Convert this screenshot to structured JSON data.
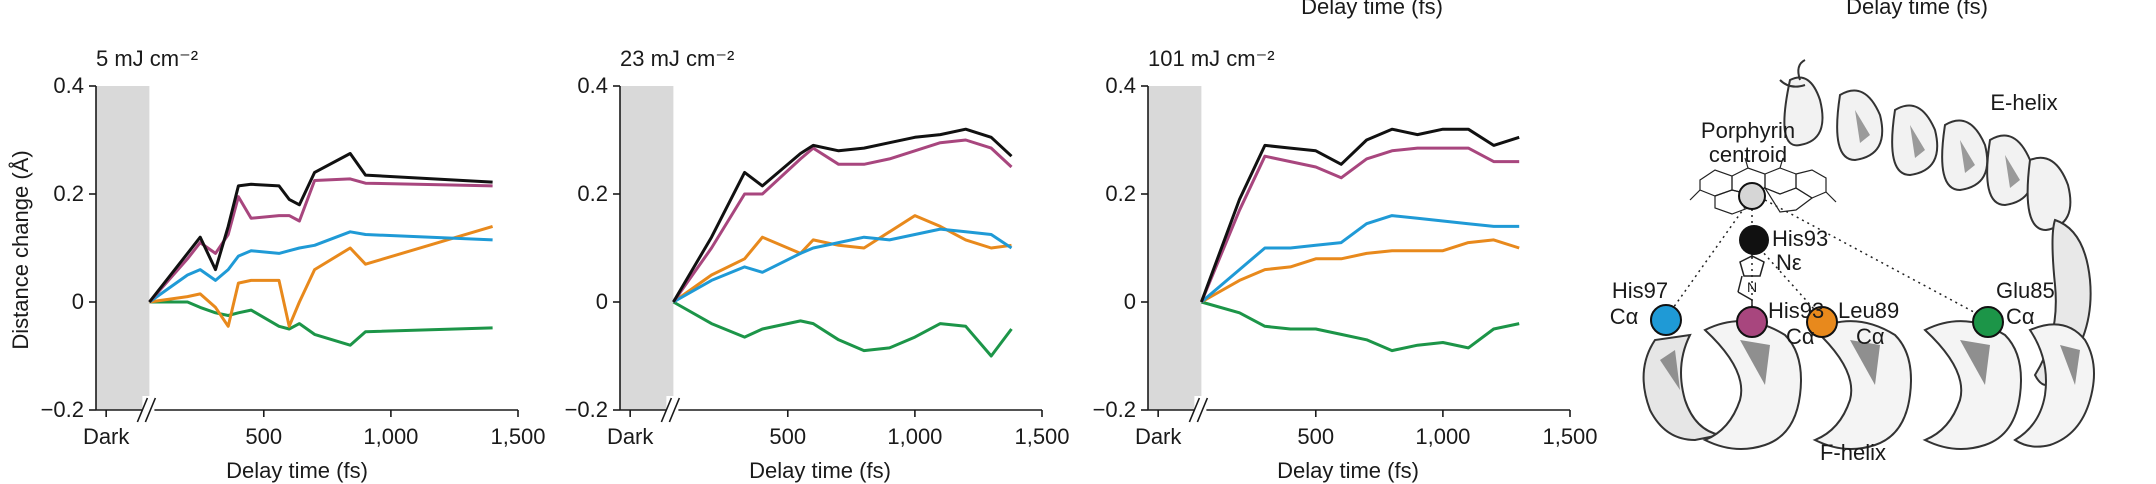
{
  "top_labels": {
    "clipped_xlabel_1": "Delay time (fs)",
    "clipped_xlabel_2": "Delay time (fs)"
  },
  "series_colors": {
    "black": "#111111",
    "magenta": "#a8467e",
    "blue": "#1f9ad6",
    "orange": "#e8891c",
    "green": "#1c9548"
  },
  "chart_data": [
    {
      "type": "line",
      "title": "5 mJ cm⁻²",
      "xlabel": "Delay time (fs)",
      "ylabel": "Distance change (Å)",
      "ylim": [
        -0.2,
        0.4
      ],
      "xlim": [
        -160,
        1500
      ],
      "dark_region": [
        -160,
        50
      ],
      "yticks": [
        -0.2,
        0,
        0.2,
        0.4
      ],
      "ytick_labels": [
        "−0.2",
        "0",
        "0.2",
        "0.4"
      ],
      "xticks": [
        -120,
        500,
        1000,
        1500
      ],
      "xtick_labels": [
        "Dark",
        "500",
        "1,000",
        "1,500"
      ],
      "series": [
        {
          "name": "black",
          "color": "#111111",
          "x": [
            50,
            200,
            250,
            310,
            360,
            400,
            450,
            560,
            600,
            640,
            700,
            840,
            900,
            1400
          ],
          "y": [
            0,
            0.09,
            0.12,
            0.06,
            0.14,
            0.215,
            0.218,
            0.215,
            0.19,
            0.18,
            0.24,
            0.275,
            0.235,
            0.222
          ]
        },
        {
          "name": "magenta",
          "color": "#a8467e",
          "x": [
            50,
            200,
            250,
            310,
            360,
            400,
            450,
            560,
            600,
            640,
            700,
            840,
            900,
            1400
          ],
          "y": [
            0,
            0.08,
            0.11,
            0.09,
            0.125,
            0.195,
            0.155,
            0.16,
            0.16,
            0.15,
            0.225,
            0.228,
            0.22,
            0.215
          ]
        },
        {
          "name": "blue",
          "color": "#1f9ad6",
          "x": [
            50,
            200,
            250,
            310,
            360,
            400,
            450,
            560,
            600,
            640,
            700,
            840,
            900,
            1400
          ],
          "y": [
            0,
            0.05,
            0.06,
            0.04,
            0.06,
            0.085,
            0.095,
            0.09,
            0.095,
            0.1,
            0.105,
            0.13,
            0.125,
            0.115
          ]
        },
        {
          "name": "orange",
          "color": "#e8891c",
          "x": [
            50,
            200,
            250,
            310,
            360,
            400,
            450,
            560,
            600,
            640,
            700,
            840,
            900,
            1400
          ],
          "y": [
            0,
            0.01,
            0.015,
            -0.01,
            -0.045,
            0.035,
            0.04,
            0.04,
            -0.045,
            0.0,
            0.06,
            0.1,
            0.07,
            0.14
          ]
        },
        {
          "name": "green",
          "color": "#1c9548",
          "x": [
            50,
            200,
            250,
            310,
            360,
            400,
            450,
            560,
            600,
            640,
            700,
            840,
            900,
            1400
          ],
          "y": [
            0,
            0.0,
            -0.01,
            -0.02,
            -0.025,
            -0.02,
            -0.015,
            -0.045,
            -0.05,
            -0.04,
            -0.06,
            -0.08,
            -0.055,
            -0.048
          ]
        }
      ]
    },
    {
      "type": "line",
      "title": "23 mJ cm⁻²",
      "xlabel": "Delay time (fs)",
      "ylabel": "",
      "ylim": [
        -0.2,
        0.4
      ],
      "xlim": [
        -160,
        1500
      ],
      "dark_region": [
        -160,
        50
      ],
      "yticks": [
        -0.2,
        0,
        0.2,
        0.4
      ],
      "ytick_labels": [
        "−0.2",
        "0",
        "0.2",
        "0.4"
      ],
      "xticks": [
        -120,
        500,
        1000,
        1500
      ],
      "xtick_labels": [
        "Dark",
        "500",
        "1,000",
        "1,500"
      ],
      "series": [
        {
          "name": "black",
          "color": "#111111",
          "x": [
            50,
            200,
            330,
            400,
            550,
            600,
            700,
            800,
            900,
            1000,
            1100,
            1200,
            1300,
            1380
          ],
          "y": [
            0,
            0.12,
            0.24,
            0.215,
            0.275,
            0.29,
            0.28,
            0.285,
            0.295,
            0.305,
            0.31,
            0.32,
            0.305,
            0.27
          ]
        },
        {
          "name": "magenta",
          "color": "#a8467e",
          "x": [
            50,
            200,
            330,
            400,
            550,
            600,
            700,
            800,
            900,
            1000,
            1100,
            1200,
            1300,
            1380
          ],
          "y": [
            0,
            0.1,
            0.2,
            0.2,
            0.265,
            0.285,
            0.255,
            0.255,
            0.265,
            0.28,
            0.295,
            0.3,
            0.285,
            0.25
          ]
        },
        {
          "name": "blue",
          "color": "#1f9ad6",
          "x": [
            50,
            200,
            330,
            400,
            550,
            600,
            700,
            800,
            900,
            1000,
            1100,
            1200,
            1300,
            1380
          ],
          "y": [
            0,
            0.04,
            0.065,
            0.055,
            0.09,
            0.1,
            0.11,
            0.12,
            0.115,
            0.125,
            0.135,
            0.13,
            0.125,
            0.1
          ]
        },
        {
          "name": "orange",
          "color": "#e8891c",
          "x": [
            50,
            200,
            330,
            400,
            550,
            600,
            700,
            800,
            900,
            1000,
            1100,
            1200,
            1300,
            1380
          ],
          "y": [
            0,
            0.05,
            0.08,
            0.12,
            0.09,
            0.115,
            0.105,
            0.1,
            0.13,
            0.16,
            0.14,
            0.115,
            0.1,
            0.105
          ]
        },
        {
          "name": "green",
          "color": "#1c9548",
          "x": [
            50,
            200,
            330,
            400,
            550,
            600,
            700,
            800,
            900,
            1000,
            1100,
            1200,
            1300,
            1380
          ],
          "y": [
            0,
            -0.04,
            -0.065,
            -0.05,
            -0.035,
            -0.04,
            -0.07,
            -0.09,
            -0.085,
            -0.065,
            -0.04,
            -0.045,
            -0.1,
            -0.05
          ]
        }
      ]
    },
    {
      "type": "line",
      "title": "101 mJ cm⁻²",
      "xlabel": "Delay time (fs)",
      "ylabel": "",
      "ylim": [
        -0.2,
        0.4
      ],
      "xlim": [
        -160,
        1500
      ],
      "dark_region": [
        -160,
        50
      ],
      "yticks": [
        -0.2,
        0,
        0.2,
        0.4
      ],
      "ytick_labels": [
        "−0.2",
        "0",
        "0.2",
        "0.4"
      ],
      "xticks": [
        -120,
        500,
        1000,
        1500
      ],
      "xtick_labels": [
        "Dark",
        "500",
        "1,000",
        "1,500"
      ],
      "series": [
        {
          "name": "black",
          "color": "#111111",
          "x": [
            50,
            200,
            300,
            400,
            500,
            600,
            700,
            800,
            900,
            1000,
            1100,
            1200,
            1300
          ],
          "y": [
            0,
            0.19,
            0.29,
            0.285,
            0.28,
            0.255,
            0.3,
            0.32,
            0.31,
            0.32,
            0.32,
            0.29,
            0.305
          ]
        },
        {
          "name": "magenta",
          "color": "#a8467e",
          "x": [
            50,
            200,
            300,
            400,
            500,
            600,
            700,
            800,
            900,
            1000,
            1100,
            1200,
            1300
          ],
          "y": [
            0,
            0.17,
            0.27,
            0.26,
            0.25,
            0.23,
            0.265,
            0.28,
            0.285,
            0.285,
            0.285,
            0.26,
            0.26
          ]
        },
        {
          "name": "blue",
          "color": "#1f9ad6",
          "x": [
            50,
            200,
            300,
            400,
            500,
            600,
            700,
            800,
            900,
            1000,
            1100,
            1200,
            1300
          ],
          "y": [
            0,
            0.06,
            0.1,
            0.1,
            0.105,
            0.11,
            0.145,
            0.16,
            0.155,
            0.15,
            0.145,
            0.14,
            0.14
          ]
        },
        {
          "name": "orange",
          "color": "#e8891c",
          "x": [
            50,
            200,
            300,
            400,
            500,
            600,
            700,
            800,
            900,
            1000,
            1100,
            1200,
            1300
          ],
          "y": [
            0,
            0.04,
            0.06,
            0.065,
            0.08,
            0.08,
            0.09,
            0.095,
            0.095,
            0.095,
            0.11,
            0.115,
            0.1
          ]
        },
        {
          "name": "green",
          "color": "#1c9548",
          "x": [
            50,
            200,
            300,
            400,
            500,
            600,
            700,
            800,
            900,
            1000,
            1100,
            1200,
            1300
          ],
          "y": [
            0,
            -0.02,
            -0.045,
            -0.05,
            -0.05,
            -0.06,
            -0.07,
            -0.09,
            -0.08,
            -0.075,
            -0.085,
            -0.05,
            -0.04
          ]
        }
      ]
    }
  ],
  "structure": {
    "helix_top": "E-helix",
    "helix_bottom": "F-helix",
    "porphyrin_line1": "Porphyrin",
    "porphyrin_line2": "centroid",
    "his93_top": "His93",
    "n_epsilon": "Nε",
    "labels": [
      {
        "line1": "His97",
        "line2": "Cα",
        "color": "#1f9ad6"
      },
      {
        "line1": "His93",
        "line2": "Cα",
        "color": "#a8467e"
      },
      {
        "line1": "Leu89",
        "line2": "Cα",
        "color": "#e8891c"
      },
      {
        "line1": "Glu85",
        "line2": "Cα",
        "color": "#1c9548"
      }
    ],
    "centroid_color": "#d6d6d6",
    "iron_color": "#111111"
  }
}
